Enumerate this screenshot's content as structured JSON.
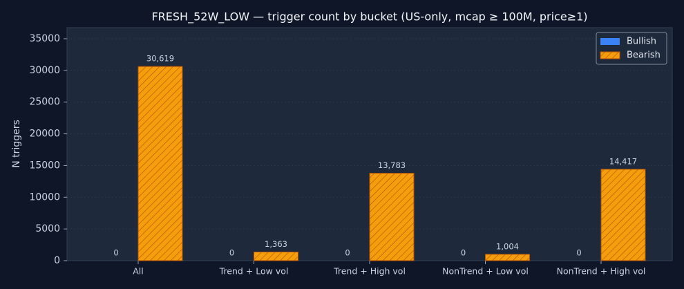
{
  "chart_data": {
    "type": "bar",
    "title": "FRESH_52W_LOW — trigger count by bucket (US-only, mcap ≥ 100M, price≥1)",
    "y_label": "N triggers",
    "categories": [
      "All",
      "Trend + Low vol",
      "Trend + High vol",
      "NonTrend + Low vol",
      "NonTrend + High vol"
    ],
    "series": [
      {
        "name": "Bullish",
        "color": "#3b82f6",
        "values": [
          0,
          0,
          0,
          0,
          0
        ]
      },
      {
        "name": "Bearish",
        "color": "#f59e0b",
        "values": [
          30619,
          1363,
          13783,
          1004,
          14417
        ],
        "value_labels": [
          "30,619",
          "1,363",
          "13,783",
          "1,004",
          "14,417"
        ]
      }
    ],
    "ylim": [
      0,
      36743
    ],
    "yticks": [
      0,
      5000,
      10000,
      15000,
      20000,
      25000,
      30000,
      35000
    ],
    "grid": true,
    "legend": "upper right"
  }
}
